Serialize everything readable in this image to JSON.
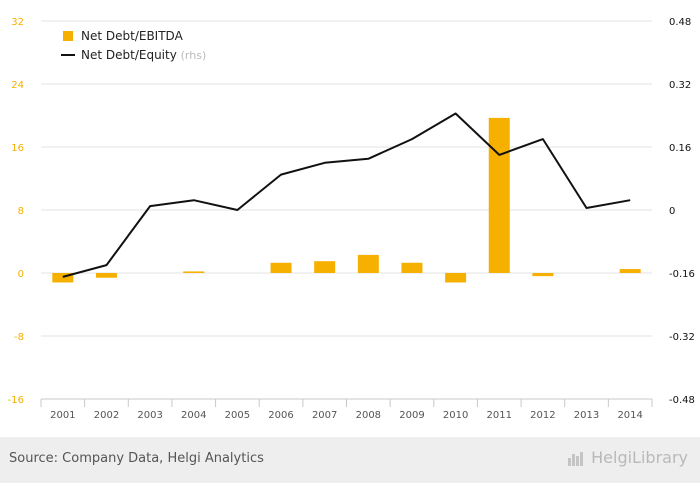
{
  "chart_data": {
    "type": "bar",
    "categories": [
      "2001",
      "2002",
      "2003",
      "2004",
      "2005",
      "2006",
      "2007",
      "2008",
      "2009",
      "2010",
      "2011",
      "2012",
      "2013",
      "2014"
    ],
    "series": [
      {
        "name": "Net Debt/EBITDA",
        "type": "bar",
        "axis": "left",
        "color": "#f5b000",
        "values": [
          -1.2,
          -0.6,
          0,
          0.2,
          0,
          1.3,
          1.5,
          2.3,
          1.3,
          -1.2,
          19.7,
          -0.4,
          0,
          0.5
        ]
      },
      {
        "name": "Net Debt/Equity",
        "name_suffix": "(rhs)",
        "type": "line",
        "axis": "right",
        "color": "#111111",
        "values": [
          -0.17,
          -0.14,
          0.01,
          0.025,
          0,
          0.09,
          0.12,
          0.13,
          0.18,
          0.245,
          0.14,
          0.18,
          0.005,
          0.025
        ]
      }
    ],
    "y_left": {
      "ticks": [
        "32",
        "24",
        "16",
        "8",
        "0",
        "-8",
        "-16"
      ],
      "range": [
        -16,
        32
      ],
      "color": "#f5b000"
    },
    "y_right": {
      "ticks": [
        "0.48",
        "0.32",
        "0.16",
        "0",
        "-0.16",
        "-0.32",
        "-0.48"
      ],
      "range": [
        -0.48,
        0.48
      ],
      "color": "#111111"
    },
    "legend": {
      "placement": "top-left"
    },
    "grid": true
  },
  "footer": {
    "source": "Source: Company Data, Helgi Analytics",
    "brand": "HelgiLibrary"
  }
}
